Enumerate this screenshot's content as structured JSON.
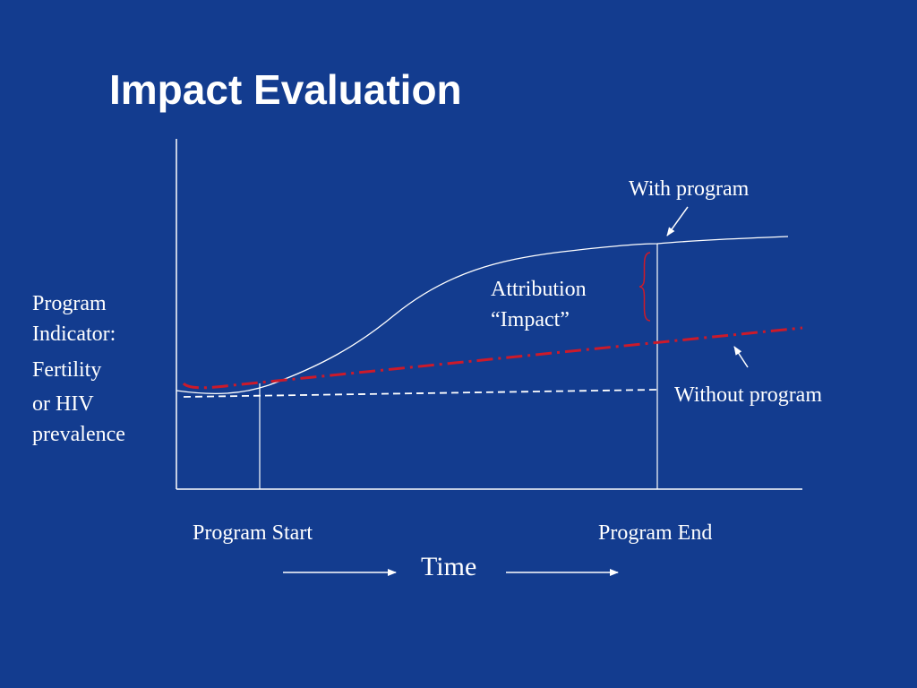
{
  "slide": {
    "title": "Impact Evaluation"
  },
  "y_axis": {
    "line1": "Program",
    "line2": "Indicator:",
    "line3": "Fertility",
    "line4": "or HIV",
    "line5": "prevalence"
  },
  "x_axis": {
    "start_label": "Program Start",
    "end_label": "Program End",
    "time_label": "Time"
  },
  "annotations": {
    "with_program": "With program",
    "without_program": "Without program",
    "attribution_line1": "Attribution",
    "attribution_line2": "“Impact”"
  },
  "colors": {
    "background": "#133c8f",
    "foreground": "#ffffff",
    "counterfactual": "#cc1a2a"
  }
}
